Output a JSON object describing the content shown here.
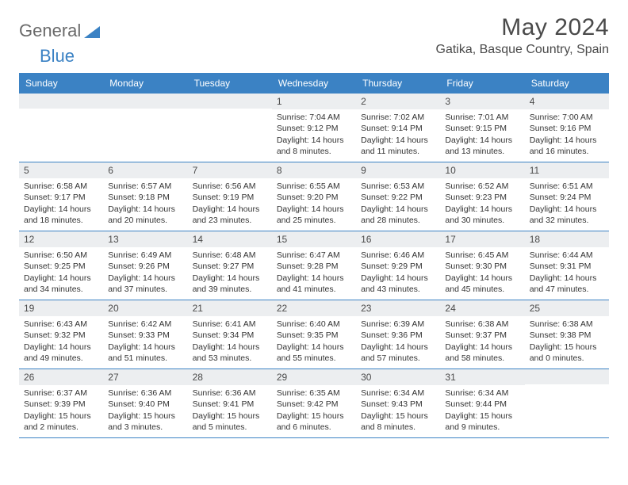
{
  "logo": {
    "text1": "General",
    "text2": "Blue"
  },
  "title": "May 2024",
  "location": "Gatika, Basque Country, Spain",
  "colors": {
    "header_bg": "#3b82c4",
    "header_text": "#ffffff",
    "daynum_bg": "#eceef0",
    "border": "#3b82c4",
    "body_text": "#333333",
    "title_text": "#4a4a4a"
  },
  "weekdays": [
    "Sunday",
    "Monday",
    "Tuesday",
    "Wednesday",
    "Thursday",
    "Friday",
    "Saturday"
  ],
  "weeks": [
    [
      {
        "n": "",
        "sr": "",
        "ss": "",
        "dl": ""
      },
      {
        "n": "",
        "sr": "",
        "ss": "",
        "dl": ""
      },
      {
        "n": "",
        "sr": "",
        "ss": "",
        "dl": ""
      },
      {
        "n": "1",
        "sr": "Sunrise: 7:04 AM",
        "ss": "Sunset: 9:12 PM",
        "dl": "Daylight: 14 hours and 8 minutes."
      },
      {
        "n": "2",
        "sr": "Sunrise: 7:02 AM",
        "ss": "Sunset: 9:14 PM",
        "dl": "Daylight: 14 hours and 11 minutes."
      },
      {
        "n": "3",
        "sr": "Sunrise: 7:01 AM",
        "ss": "Sunset: 9:15 PM",
        "dl": "Daylight: 14 hours and 13 minutes."
      },
      {
        "n": "4",
        "sr": "Sunrise: 7:00 AM",
        "ss": "Sunset: 9:16 PM",
        "dl": "Daylight: 14 hours and 16 minutes."
      }
    ],
    [
      {
        "n": "5",
        "sr": "Sunrise: 6:58 AM",
        "ss": "Sunset: 9:17 PM",
        "dl": "Daylight: 14 hours and 18 minutes."
      },
      {
        "n": "6",
        "sr": "Sunrise: 6:57 AM",
        "ss": "Sunset: 9:18 PM",
        "dl": "Daylight: 14 hours and 20 minutes."
      },
      {
        "n": "7",
        "sr": "Sunrise: 6:56 AM",
        "ss": "Sunset: 9:19 PM",
        "dl": "Daylight: 14 hours and 23 minutes."
      },
      {
        "n": "8",
        "sr": "Sunrise: 6:55 AM",
        "ss": "Sunset: 9:20 PM",
        "dl": "Daylight: 14 hours and 25 minutes."
      },
      {
        "n": "9",
        "sr": "Sunrise: 6:53 AM",
        "ss": "Sunset: 9:22 PM",
        "dl": "Daylight: 14 hours and 28 minutes."
      },
      {
        "n": "10",
        "sr": "Sunrise: 6:52 AM",
        "ss": "Sunset: 9:23 PM",
        "dl": "Daylight: 14 hours and 30 minutes."
      },
      {
        "n": "11",
        "sr": "Sunrise: 6:51 AM",
        "ss": "Sunset: 9:24 PM",
        "dl": "Daylight: 14 hours and 32 minutes."
      }
    ],
    [
      {
        "n": "12",
        "sr": "Sunrise: 6:50 AM",
        "ss": "Sunset: 9:25 PM",
        "dl": "Daylight: 14 hours and 34 minutes."
      },
      {
        "n": "13",
        "sr": "Sunrise: 6:49 AM",
        "ss": "Sunset: 9:26 PM",
        "dl": "Daylight: 14 hours and 37 minutes."
      },
      {
        "n": "14",
        "sr": "Sunrise: 6:48 AM",
        "ss": "Sunset: 9:27 PM",
        "dl": "Daylight: 14 hours and 39 minutes."
      },
      {
        "n": "15",
        "sr": "Sunrise: 6:47 AM",
        "ss": "Sunset: 9:28 PM",
        "dl": "Daylight: 14 hours and 41 minutes."
      },
      {
        "n": "16",
        "sr": "Sunrise: 6:46 AM",
        "ss": "Sunset: 9:29 PM",
        "dl": "Daylight: 14 hours and 43 minutes."
      },
      {
        "n": "17",
        "sr": "Sunrise: 6:45 AM",
        "ss": "Sunset: 9:30 PM",
        "dl": "Daylight: 14 hours and 45 minutes."
      },
      {
        "n": "18",
        "sr": "Sunrise: 6:44 AM",
        "ss": "Sunset: 9:31 PM",
        "dl": "Daylight: 14 hours and 47 minutes."
      }
    ],
    [
      {
        "n": "19",
        "sr": "Sunrise: 6:43 AM",
        "ss": "Sunset: 9:32 PM",
        "dl": "Daylight: 14 hours and 49 minutes."
      },
      {
        "n": "20",
        "sr": "Sunrise: 6:42 AM",
        "ss": "Sunset: 9:33 PM",
        "dl": "Daylight: 14 hours and 51 minutes."
      },
      {
        "n": "21",
        "sr": "Sunrise: 6:41 AM",
        "ss": "Sunset: 9:34 PM",
        "dl": "Daylight: 14 hours and 53 minutes."
      },
      {
        "n": "22",
        "sr": "Sunrise: 6:40 AM",
        "ss": "Sunset: 9:35 PM",
        "dl": "Daylight: 14 hours and 55 minutes."
      },
      {
        "n": "23",
        "sr": "Sunrise: 6:39 AM",
        "ss": "Sunset: 9:36 PM",
        "dl": "Daylight: 14 hours and 57 minutes."
      },
      {
        "n": "24",
        "sr": "Sunrise: 6:38 AM",
        "ss": "Sunset: 9:37 PM",
        "dl": "Daylight: 14 hours and 58 minutes."
      },
      {
        "n": "25",
        "sr": "Sunrise: 6:38 AM",
        "ss": "Sunset: 9:38 PM",
        "dl": "Daylight: 15 hours and 0 minutes."
      }
    ],
    [
      {
        "n": "26",
        "sr": "Sunrise: 6:37 AM",
        "ss": "Sunset: 9:39 PM",
        "dl": "Daylight: 15 hours and 2 minutes."
      },
      {
        "n": "27",
        "sr": "Sunrise: 6:36 AM",
        "ss": "Sunset: 9:40 PM",
        "dl": "Daylight: 15 hours and 3 minutes."
      },
      {
        "n": "28",
        "sr": "Sunrise: 6:36 AM",
        "ss": "Sunset: 9:41 PM",
        "dl": "Daylight: 15 hours and 5 minutes."
      },
      {
        "n": "29",
        "sr": "Sunrise: 6:35 AM",
        "ss": "Sunset: 9:42 PM",
        "dl": "Daylight: 15 hours and 6 minutes."
      },
      {
        "n": "30",
        "sr": "Sunrise: 6:34 AM",
        "ss": "Sunset: 9:43 PM",
        "dl": "Daylight: 15 hours and 8 minutes."
      },
      {
        "n": "31",
        "sr": "Sunrise: 6:34 AM",
        "ss": "Sunset: 9:44 PM",
        "dl": "Daylight: 15 hours and 9 minutes."
      },
      {
        "n": "",
        "sr": "",
        "ss": "",
        "dl": ""
      }
    ]
  ]
}
